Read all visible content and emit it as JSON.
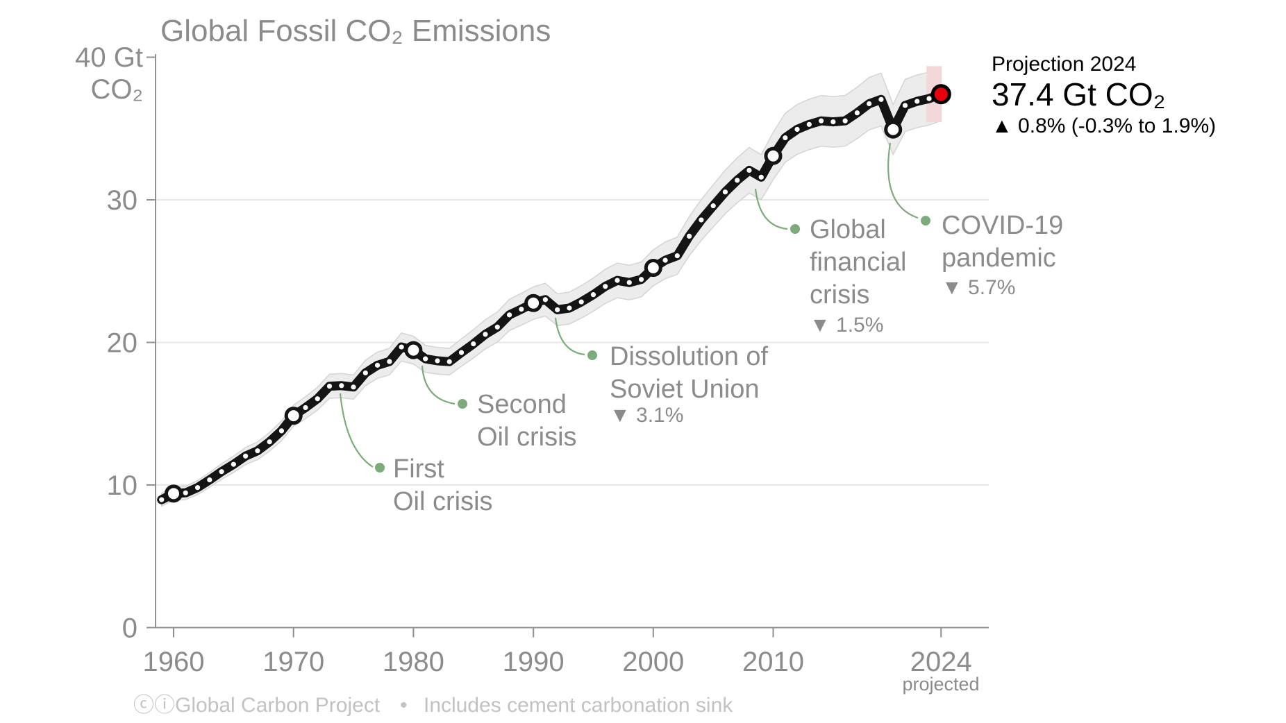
{
  "chart_data": {
    "type": "line",
    "title": "Global Fossil CO₂ Emissions",
    "y_axis": {
      "unit_top": "40 Gt",
      "unit_bottom": "CO₂",
      "ticks": [
        0,
        10,
        20,
        30
      ],
      "gridlines": [
        10,
        20,
        30
      ],
      "range": [
        0,
        40
      ]
    },
    "x_axis": {
      "ticks": [
        1960,
        1970,
        1980,
        1990,
        2000,
        2010,
        2024
      ],
      "projected_note": "projected",
      "range": [
        1959,
        2024
      ]
    },
    "series": [
      {
        "name": "Global fossil CO2 emissions (Gt CO2)",
        "years": [
          1959,
          1960,
          1961,
          1962,
          1963,
          1964,
          1965,
          1966,
          1967,
          1968,
          1969,
          1970,
          1971,
          1972,
          1973,
          1974,
          1975,
          1976,
          1977,
          1978,
          1979,
          1980,
          1981,
          1982,
          1983,
          1984,
          1985,
          1986,
          1987,
          1988,
          1989,
          1990,
          1991,
          1992,
          1993,
          1994,
          1995,
          1996,
          1997,
          1998,
          1999,
          2000,
          2001,
          2002,
          2003,
          2004,
          2005,
          2006,
          2007,
          2008,
          2009,
          2010,
          2011,
          2012,
          2013,
          2014,
          2015,
          2016,
          2017,
          2018,
          2019,
          2020,
          2021,
          2022,
          2023,
          2024
        ],
        "values": [
          8.97,
          9.4,
          9.45,
          9.82,
          10.36,
          10.94,
          11.45,
          12.03,
          12.4,
          13.03,
          13.8,
          14.86,
          15.43,
          16.05,
          16.93,
          16.97,
          16.87,
          17.86,
          18.4,
          18.66,
          19.68,
          19.46,
          18.85,
          18.71,
          18.65,
          19.29,
          19.9,
          20.57,
          21.08,
          21.93,
          22.33,
          22.76,
          23.0,
          22.29,
          22.41,
          22.84,
          23.35,
          23.93,
          24.35,
          24.2,
          24.42,
          25.23,
          25.76,
          26.08,
          27.45,
          28.59,
          29.58,
          30.55,
          31.37,
          32.07,
          31.59,
          33.08,
          34.35,
          34.94,
          35.29,
          35.54,
          35.47,
          35.54,
          36.1,
          36.74,
          37.04,
          34.93,
          36.62,
          36.91,
          37.1,
          37.41
        ]
      }
    ],
    "uncertainty_pct": 5,
    "decade_markers": [
      1960,
      1970,
      1980,
      1990,
      2000,
      2010,
      2020
    ],
    "projection": {
      "year": 2024,
      "value": 37.41,
      "label": "Projection 2024",
      "value_label": "37.4 Gt CO₂",
      "change_label": "▲ 0.8% (-0.3% to 1.9%)"
    },
    "annotations": [
      {
        "year": 1974,
        "lines": [
          "First",
          "Oil crisis"
        ],
        "drop": null
      },
      {
        "year": 1981,
        "lines": [
          "Second",
          "Oil crisis"
        ],
        "drop": null
      },
      {
        "year": 1992,
        "lines": [
          "Dissolution of",
          "Soviet Union"
        ],
        "drop": "▼ 3.1%"
      },
      {
        "year": 2009,
        "lines": [
          "Global",
          "financial",
          "crisis"
        ],
        "drop": "▼ 1.5%"
      },
      {
        "year": 2020,
        "lines": [
          "COVID-19",
          "pandemic"
        ],
        "drop": "▼ 5.7%"
      }
    ],
    "legend_position": "none",
    "grid": true
  },
  "attribution": {
    "license": "ⓒⓘ",
    "source": "Global Carbon Project",
    "separator": "•",
    "note": "Includes cement carbonation sink"
  },
  "colors": {
    "line": "#141414",
    "band_fill": "#ececec",
    "band_edge": "#d4d4d4",
    "gridline": "#e7e7e7",
    "axis": "#8f8f8f",
    "annotation_green": "#7dab7b",
    "projection_red": "#e8000d",
    "projection_band_pink": "#f3d8da",
    "text_gray": "#8b8b8b",
    "attribution_gray": "#c2c2c2",
    "black": "#000000",
    "white": "#ffffff"
  }
}
